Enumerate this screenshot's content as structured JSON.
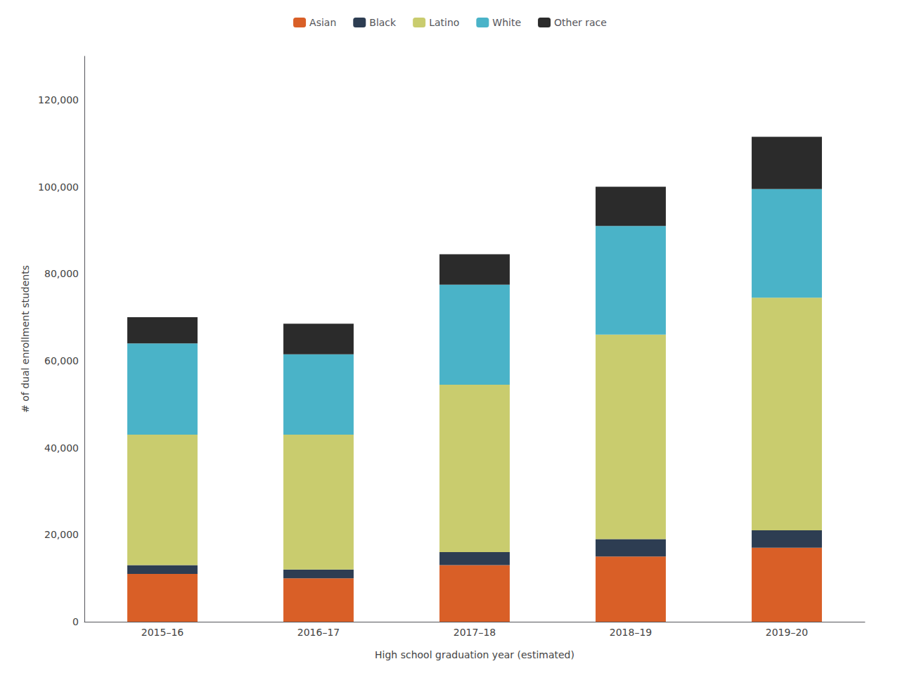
{
  "chart_data": {
    "type": "bar",
    "stacked": true,
    "categories": [
      "2015–16",
      "2016–17",
      "2017–18",
      "2018–19",
      "2019–20"
    ],
    "series": [
      {
        "name": "Asian",
        "color": "#d95f27",
        "values": [
          11000,
          10000,
          13000,
          15000,
          17000
        ]
      },
      {
        "name": "Black",
        "color": "#2d3d52",
        "values": [
          2000,
          2000,
          3000,
          4000,
          4000
        ]
      },
      {
        "name": "Latino",
        "color": "#c9cc6e",
        "values": [
          30000,
          31000,
          38500,
          47000,
          53500
        ]
      },
      {
        "name": "White",
        "color": "#4ab3c8",
        "values": [
          21000,
          18500,
          23000,
          25000,
          25000
        ]
      },
      {
        "name": "Other race",
        "color": "#2b2b2b",
        "values": [
          6000,
          7000,
          7000,
          9000,
          12000
        ]
      }
    ],
    "ylabel": "# of dual enrollment students",
    "xlabel": "High school graduation year (estimated)",
    "ylim": [
      0,
      130000
    ],
    "yticks": [
      0,
      {
        "value": 20000,
        "label": "20,000"
      },
      {
        "value": 40000,
        "label": "40,000"
      },
      {
        "value": 60000,
        "label": "60,000"
      },
      {
        "value": 80000,
        "label": "80,000"
      },
      {
        "value": 100000,
        "label": "100,000"
      },
      {
        "value": 120000,
        "label": "120,000"
      }
    ],
    "grid": false,
    "legend": "top"
  }
}
